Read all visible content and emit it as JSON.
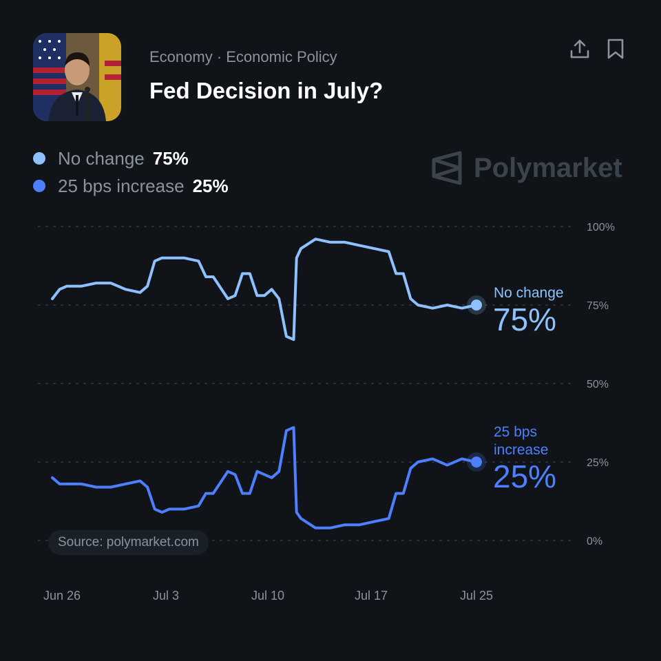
{
  "header": {
    "category": "Economy · Economic Policy",
    "title": "Fed Decision in July?",
    "share_icon": "share-icon",
    "bookmark_icon": "bookmark-icon"
  },
  "legend": [
    {
      "name": "No change",
      "value": "75%",
      "color": "#8ec1ff"
    },
    {
      "name": "25 bps increase",
      "value": "25%",
      "color": "#4d7fff"
    }
  ],
  "brand": {
    "name": "Polymarket",
    "logo_icon": "polymarket-logo-icon"
  },
  "source": "Source: polymarket.com",
  "end_labels": [
    {
      "name": "No change",
      "value": "75%"
    },
    {
      "name_lines": [
        "25 bps",
        "increase"
      ],
      "value": "25%"
    }
  ],
  "chart_data": {
    "type": "line",
    "title": "Fed Decision in July?",
    "x_ticks": [
      "Jun 26",
      "Jul 3",
      "Jul 10",
      "Jul 17",
      "Jul 25"
    ],
    "y_ticks": [
      "100%",
      "75%",
      "50%",
      "25%",
      "0%"
    ],
    "ylim": [
      0,
      100
    ],
    "grid": true,
    "legend_position": "top-left",
    "series": [
      {
        "name": "No change",
        "color": "#8ec1ff",
        "points": [
          [
            "Jun 26",
            77
          ],
          [
            "Jun 26.5",
            80
          ],
          [
            "Jun 27",
            81
          ],
          [
            "Jun 28",
            81
          ],
          [
            "Jun 29",
            82
          ],
          [
            "Jun 30",
            82
          ],
          [
            "Jul 1",
            80
          ],
          [
            "Jul 2",
            79
          ],
          [
            "Jul 2.5",
            81
          ],
          [
            "Jul 3",
            89
          ],
          [
            "Jul 3.5",
            90
          ],
          [
            "Jul 4",
            90
          ],
          [
            "Jul 5",
            90
          ],
          [
            "Jul 6",
            89
          ],
          [
            "Jul 6.5",
            84
          ],
          [
            "Jul 7",
            84
          ],
          [
            "Jul 8",
            77
          ],
          [
            "Jul 8.5",
            78
          ],
          [
            "Jul 9",
            85
          ],
          [
            "Jul 9.5",
            85
          ],
          [
            "Jul 10",
            78
          ],
          [
            "Jul 10.5",
            78
          ],
          [
            "Jul 11",
            80
          ],
          [
            "Jul 11.5",
            77
          ],
          [
            "Jul 12",
            65
          ],
          [
            "Jul 12.5",
            64
          ],
          [
            "Jul 12.7",
            90
          ],
          [
            "Jul 13",
            93
          ],
          [
            "Jul 14",
            96
          ],
          [
            "Jul 15",
            95
          ],
          [
            "Jul 16",
            95
          ],
          [
            "Jul 17",
            94
          ],
          [
            "Jul 18",
            93
          ],
          [
            "Jul 19",
            92
          ],
          [
            "Jul 19.5",
            85
          ],
          [
            "Jul 20",
            85
          ],
          [
            "Jul 20.5",
            77
          ],
          [
            "Jul 21",
            75
          ],
          [
            "Jul 22",
            74
          ],
          [
            "Jul 23",
            75
          ],
          [
            "Jul 24",
            74
          ],
          [
            "Jul 25",
            75
          ]
        ]
      },
      {
        "name": "25 bps increase",
        "color": "#4d7fff",
        "points": [
          [
            "Jun 26",
            20
          ],
          [
            "Jun 26.5",
            18
          ],
          [
            "Jun 27",
            18
          ],
          [
            "Jun 28",
            18
          ],
          [
            "Jun 29",
            17
          ],
          [
            "Jun 30",
            17
          ],
          [
            "Jul 1",
            18
          ],
          [
            "Jul 2",
            19
          ],
          [
            "Jul 2.5",
            17
          ],
          [
            "Jul 3",
            10
          ],
          [
            "Jul 3.5",
            9
          ],
          [
            "Jul 4",
            10
          ],
          [
            "Jul 5",
            10
          ],
          [
            "Jul 6",
            11
          ],
          [
            "Jul 6.5",
            15
          ],
          [
            "Jul 7",
            15
          ],
          [
            "Jul 8",
            22
          ],
          [
            "Jul 8.5",
            21
          ],
          [
            "Jul 9",
            15
          ],
          [
            "Jul 9.5",
            15
          ],
          [
            "Jul 10",
            22
          ],
          [
            "Jul 10.5",
            21
          ],
          [
            "Jul 11",
            20
          ],
          [
            "Jul 11.5",
            22
          ],
          [
            "Jul 12",
            35
          ],
          [
            "Jul 12.5",
            36
          ],
          [
            "Jul 12.7",
            9
          ],
          [
            "Jul 13",
            7
          ],
          [
            "Jul 14",
            4
          ],
          [
            "Jul 15",
            4
          ],
          [
            "Jul 16",
            5
          ],
          [
            "Jul 17",
            5
          ],
          [
            "Jul 18",
            6
          ],
          [
            "Jul 19",
            7
          ],
          [
            "Jul 19.5",
            15
          ],
          [
            "Jul 20",
            15
          ],
          [
            "Jul 20.5",
            23
          ],
          [
            "Jul 21",
            25
          ],
          [
            "Jul 22",
            26
          ],
          [
            "Jul 23",
            24
          ],
          [
            "Jul 24",
            26
          ],
          [
            "Jul 25",
            25
          ]
        ]
      }
    ]
  }
}
